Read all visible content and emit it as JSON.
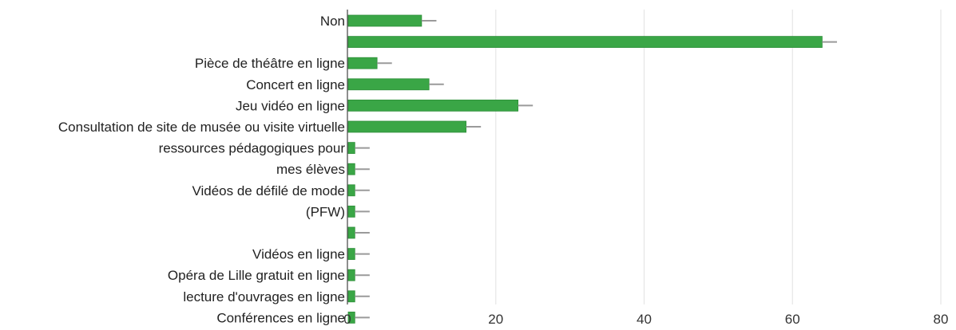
{
  "chart_data": {
    "type": "bar",
    "orientation": "horizontal",
    "categories": [
      {
        "label_lines": [
          "Non"
        ],
        "value": 10,
        "error": 2
      },
      {
        "label_lines": [],
        "value": 64,
        "error": 2
      },
      {
        "label_lines": [
          "Pièce de théâtre en ligne"
        ],
        "value": 4,
        "error": 2
      },
      {
        "label_lines": [
          "Concert en ligne"
        ],
        "value": 11,
        "error": 2
      },
      {
        "label_lines": [
          "Jeu vidéo en ligne"
        ],
        "value": 23,
        "error": 2
      },
      {
        "label_lines": [
          "Consultation de site de musée ou visite virtuelle"
        ],
        "value": 16,
        "error": 2
      },
      {
        "label_lines": [
          "ressources pédagogiques pour"
        ],
        "value": 1,
        "error": 2
      },
      {
        "label_lines": [
          "mes élèves"
        ],
        "value": 1,
        "error": 2
      },
      {
        "label_lines": [
          "Vidéos de défilé de mode"
        ],
        "value": 1,
        "error": 2
      },
      {
        "label_lines": [
          "(PFW)"
        ],
        "value": 1,
        "error": 2
      },
      {
        "label_lines": [],
        "value": 1,
        "error": 2
      },
      {
        "label_lines": [
          "Vidéos en ligne"
        ],
        "value": 1,
        "error": 2
      },
      {
        "label_lines": [
          "Opéra de Lille gratuit en ligne"
        ],
        "value": 1,
        "error": 2
      },
      {
        "label_lines": [
          "lecture d'ouvrages en ligne"
        ],
        "value": 1,
        "error": 2
      },
      {
        "label_lines": [
          "Conférences en ligne"
        ],
        "value": 1,
        "error": 2
      }
    ],
    "xlim": [
      0,
      80
    ],
    "xticks": [
      0,
      20,
      40,
      60,
      80
    ],
    "grid": true,
    "legend": "none",
    "colors": {
      "bar": "#3aa646",
      "bar_edge": "#2f8f3a",
      "error_bar": "#9a9a9a",
      "grid": "#e6e6e6",
      "axis": "#444444"
    }
  }
}
